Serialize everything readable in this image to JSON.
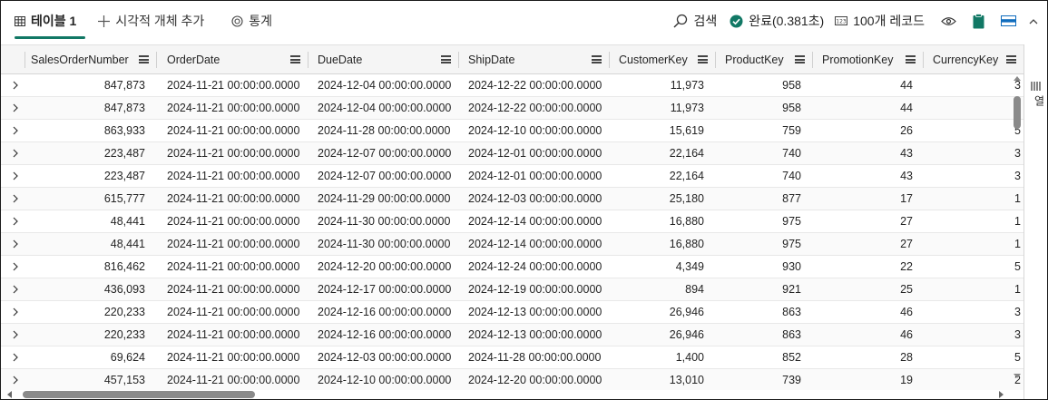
{
  "toolbar": {
    "tabs": [
      {
        "label": "테이블 1",
        "icon": "table-icon",
        "active": true
      },
      {
        "label": "시각적 개체 추가",
        "icon": "plus-icon"
      },
      {
        "label": "통계",
        "icon": "stats-icon"
      }
    ],
    "search_label": "검색",
    "status_label": "완료(0.381초)",
    "records_label": "100개 레코드",
    "accent_color": "#117865"
  },
  "columns": [
    {
      "name": "SalesOrderNumber"
    },
    {
      "name": "OrderDate"
    },
    {
      "name": "DueDate"
    },
    {
      "name": "ShipDate"
    },
    {
      "name": "CustomerKey"
    },
    {
      "name": "ProductKey"
    },
    {
      "name": "PromotionKey"
    },
    {
      "name": "CurrencyKey"
    }
  ],
  "rows": [
    [
      "847,873",
      "2024-11-21 00:00:00.0000",
      "2024-12-04 00:00:00.0000",
      "2024-12-22 00:00:00.0000",
      "11,973",
      "958",
      "44",
      "3"
    ],
    [
      "847,873",
      "2024-11-21 00:00:00.0000",
      "2024-12-04 00:00:00.0000",
      "2024-12-22 00:00:00.0000",
      "11,973",
      "958",
      "44",
      "3"
    ],
    [
      "863,933",
      "2024-11-21 00:00:00.0000",
      "2024-11-28 00:00:00.0000",
      "2024-12-10 00:00:00.0000",
      "15,619",
      "759",
      "26",
      "5"
    ],
    [
      "223,487",
      "2024-11-21 00:00:00.0000",
      "2024-12-07 00:00:00.0000",
      "2024-12-01 00:00:00.0000",
      "22,164",
      "740",
      "43",
      "3"
    ],
    [
      "223,487",
      "2024-11-21 00:00:00.0000",
      "2024-12-07 00:00:00.0000",
      "2024-12-01 00:00:00.0000",
      "22,164",
      "740",
      "43",
      "3"
    ],
    [
      "615,777",
      "2024-11-21 00:00:00.0000",
      "2024-11-29 00:00:00.0000",
      "2024-12-03 00:00:00.0000",
      "25,180",
      "877",
      "17",
      "1"
    ],
    [
      "48,441",
      "2024-11-21 00:00:00.0000",
      "2024-11-30 00:00:00.0000",
      "2024-12-14 00:00:00.0000",
      "16,880",
      "975",
      "27",
      "1"
    ],
    [
      "48,441",
      "2024-11-21 00:00:00.0000",
      "2024-11-30 00:00:00.0000",
      "2024-12-14 00:00:00.0000",
      "16,880",
      "975",
      "27",
      "1"
    ],
    [
      "816,462",
      "2024-11-21 00:00:00.0000",
      "2024-12-20 00:00:00.0000",
      "2024-12-24 00:00:00.0000",
      "4,349",
      "930",
      "22",
      "5"
    ],
    [
      "436,093",
      "2024-11-21 00:00:00.0000",
      "2024-12-17 00:00:00.0000",
      "2024-12-19 00:00:00.0000",
      "894",
      "921",
      "25",
      "1"
    ],
    [
      "220,233",
      "2024-11-21 00:00:00.0000",
      "2024-12-16 00:00:00.0000",
      "2024-12-13 00:00:00.0000",
      "26,946",
      "863",
      "46",
      "3"
    ],
    [
      "220,233",
      "2024-11-21 00:00:00.0000",
      "2024-12-16 00:00:00.0000",
      "2024-12-13 00:00:00.0000",
      "26,946",
      "863",
      "46",
      "3"
    ],
    [
      "69,624",
      "2024-11-21 00:00:00.0000",
      "2024-12-03 00:00:00.0000",
      "2024-11-28 00:00:00.0000",
      "1,400",
      "852",
      "28",
      "5"
    ],
    [
      "457,153",
      "2024-11-21 00:00:00.0000",
      "2024-12-10 00:00:00.0000",
      "2024-12-20 00:00:00.0000",
      "13,010",
      "739",
      "19",
      "2"
    ]
  ],
  "side_panel": {
    "label": "열",
    "icon": "columns-icon"
  }
}
